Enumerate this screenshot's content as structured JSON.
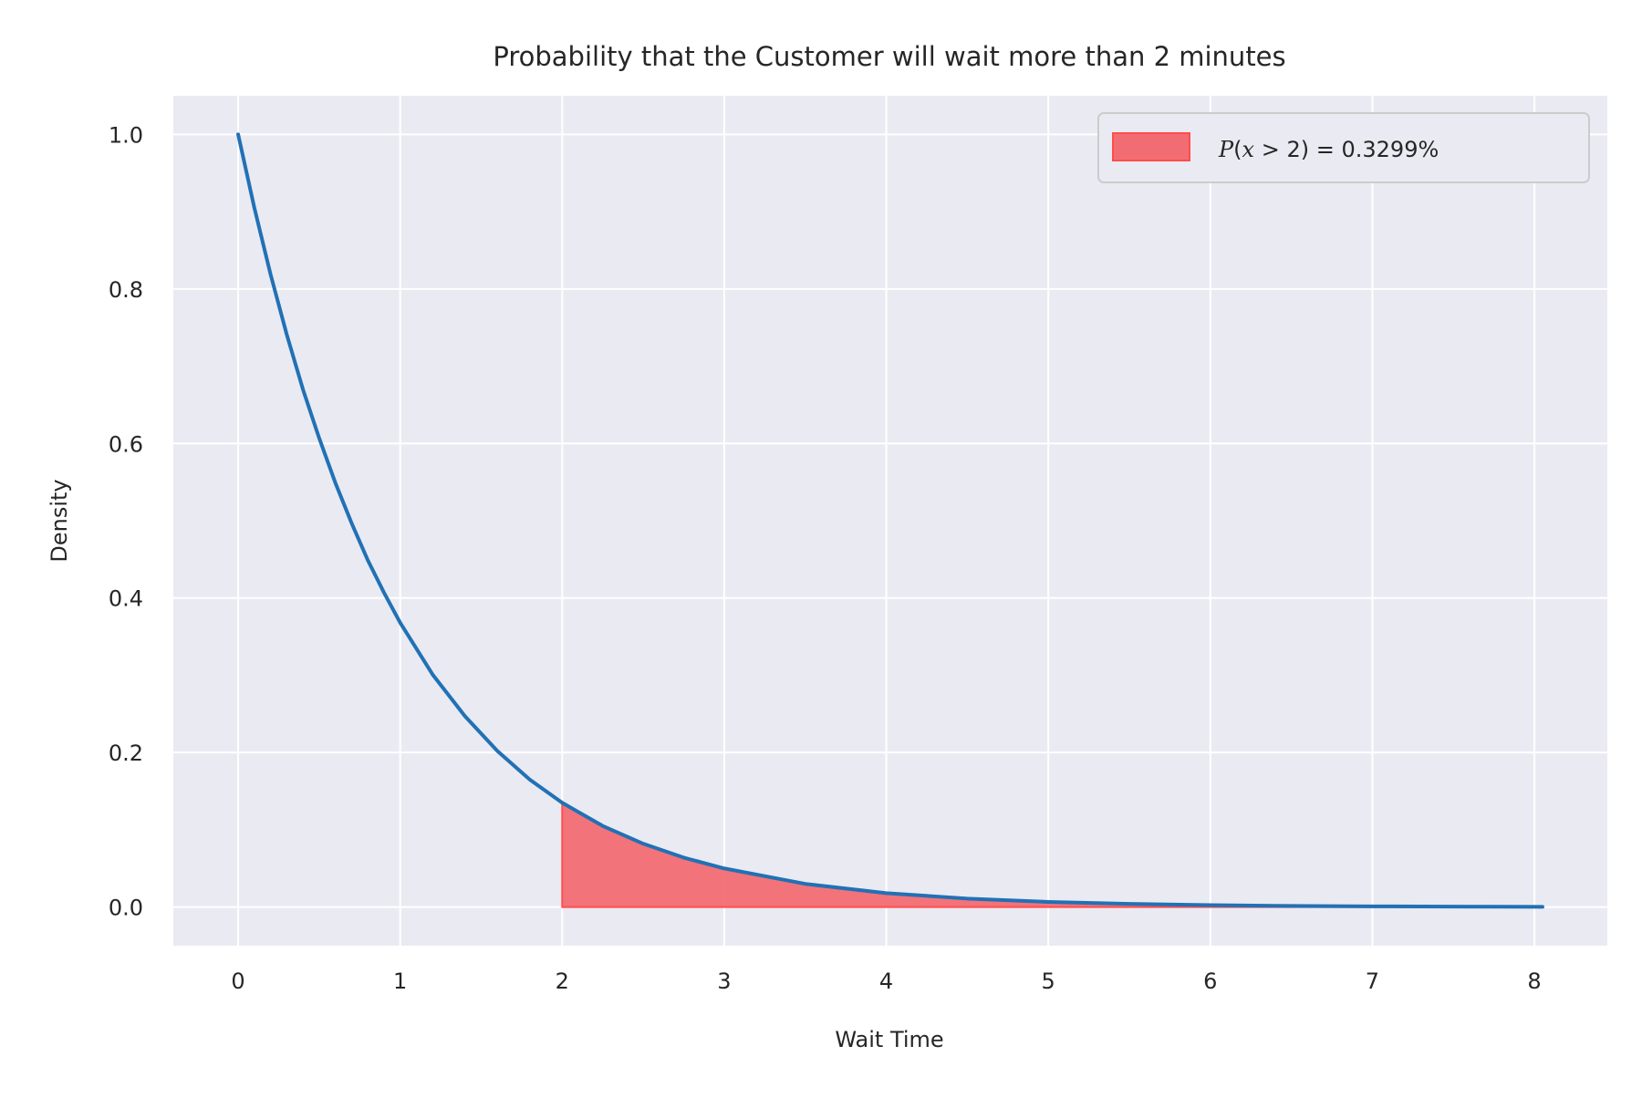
{
  "chart_data": {
    "type": "area",
    "title": "Probability that the Customer will wait more than 2 minutes",
    "xlabel": "Wait Time",
    "ylabel": "Density",
    "xlim": [
      -0.4,
      8.45
    ],
    "ylim": [
      -0.05,
      1.05
    ],
    "xticks": [
      "0",
      "1",
      "2",
      "3",
      "4",
      "5",
      "6",
      "7",
      "8"
    ],
    "yticks": [
      "0.0",
      "0.2",
      "0.4",
      "0.6",
      "0.8",
      "1.0"
    ],
    "grid": true,
    "legend_position": "top-right",
    "legend": {
      "prefix": "P",
      "open": "(",
      "var": "x",
      "op": " > ",
      "num": "2",
      "close": ")",
      "eq": " = ",
      "value": "0.3299%"
    },
    "series": [
      {
        "type": "line",
        "x": [
          0,
          0.1,
          0.2,
          0.3,
          0.4,
          0.5,
          0.6,
          0.7,
          0.8,
          0.9,
          1.0,
          1.2,
          1.4,
          1.6,
          1.8,
          2.0,
          2.25,
          2.5,
          2.75,
          3.0,
          3.5,
          4.0,
          4.5,
          5.0,
          5.5,
          6.0,
          6.5,
          7.0,
          7.5,
          8.05
        ],
        "y": [
          1.0,
          0.905,
          0.819,
          0.741,
          0.67,
          0.607,
          0.549,
          0.497,
          0.449,
          0.407,
          0.368,
          0.301,
          0.247,
          0.202,
          0.165,
          0.135,
          0.105,
          0.082,
          0.064,
          0.05,
          0.03,
          0.018,
          0.011,
          0.0067,
          0.0041,
          0.0025,
          0.0015,
          0.0009,
          0.0006,
          0.0003
        ]
      },
      {
        "type": "area",
        "x": [
          2.0,
          2.25,
          2.5,
          2.75,
          3.0,
          3.5,
          4.0,
          4.5,
          5.0,
          5.5,
          6.0,
          6.5,
          7.0,
          7.5,
          8.05
        ],
        "y": [
          0.135,
          0.105,
          0.082,
          0.064,
          0.05,
          0.03,
          0.018,
          0.011,
          0.0067,
          0.0041,
          0.0025,
          0.0015,
          0.0009,
          0.0006,
          0.0003
        ]
      }
    ],
    "colors": {
      "background": "#eaeaf2",
      "grid": "#ffffff",
      "line": "#2171b5",
      "fill": "#f26d73",
      "fill_edge": "#ff4d4d"
    }
  }
}
